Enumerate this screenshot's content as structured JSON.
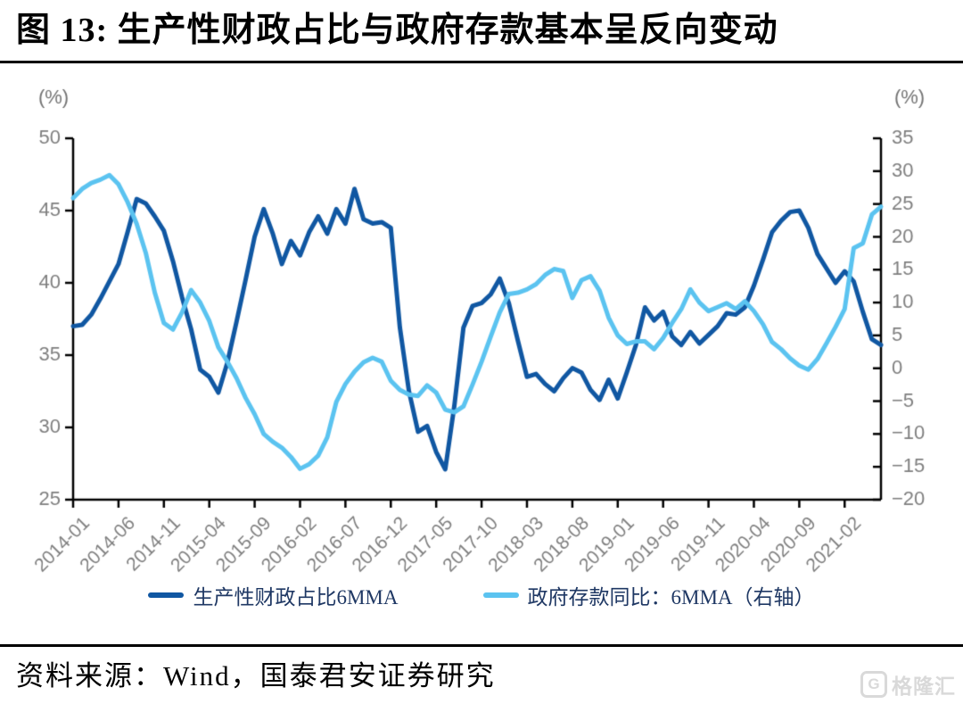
{
  "header": {
    "title": "图 13:  生产性财政占比与政府存款基本呈反向变动"
  },
  "footer": {
    "source": "资料来源：Wind，国泰君安证券研究",
    "watermark_icon": "G",
    "watermark_text": "格隆汇"
  },
  "chart_data": {
    "type": "line",
    "title": "",
    "grid": false,
    "legend_position": "bottom",
    "left_axis": {
      "label": "(%)",
      "min": 25,
      "max": 50,
      "step": 5,
      "ticks": [
        "50",
        "45",
        "40",
        "35",
        "30",
        "25"
      ]
    },
    "right_axis": {
      "label": "(%)",
      "min": -20,
      "max": 35,
      "step": 5,
      "ticks": [
        "35",
        "30",
        "25",
        "20",
        "15",
        "10",
        "5",
        "0",
        "−5",
        "−10",
        "−15",
        "−20"
      ]
    },
    "x_axis": {
      "months_total": 90,
      "start_month": "2014-01",
      "end_month": "2021-06",
      "tick_labels": [
        "2014-01",
        "2014-06",
        "2014-11",
        "2015-04",
        "2015-09",
        "2016-02",
        "2016-07",
        "2016-12",
        "2017-05",
        "2017-10",
        "2018-03",
        "2018-08",
        "2019-01",
        "2019-06",
        "2019-11",
        "2020-04",
        "2020-09",
        "2021-02"
      ],
      "tick_month_index": [
        0,
        5,
        10,
        15,
        20,
        25,
        30,
        35,
        40,
        45,
        50,
        55,
        60,
        65,
        70,
        75,
        80,
        85
      ]
    },
    "series": [
      {
        "name": "生产性财政占比6MMA",
        "axis": "left",
        "color": "#1057A2",
        "values": [
          37.0,
          37.1,
          37.8,
          38.9,
          40.1,
          41.3,
          43.5,
          45.8,
          45.5,
          44.6,
          43.6,
          41.5,
          39.0,
          36.8,
          34.0,
          33.5,
          32.4,
          34.5,
          37.3,
          40.2,
          43.2,
          45.1,
          43.4,
          41.3,
          42.9,
          41.9,
          43.5,
          44.6,
          43.4,
          45.1,
          44.1,
          46.5,
          44.4,
          44.1,
          44.2,
          43.8,
          36.9,
          32.5,
          29.7,
          30.1,
          28.3,
          27.1,
          31.5,
          36.9,
          38.4,
          38.6,
          39.2,
          40.3,
          38.6,
          36.0,
          33.5,
          33.7,
          33.0,
          32.5,
          33.4,
          34.1,
          33.8,
          32.6,
          31.9,
          33.3,
          32.0,
          33.8,
          35.7,
          38.3,
          37.4,
          38.0,
          36.3,
          35.7,
          36.6,
          35.8,
          36.4,
          37.0,
          37.9,
          37.8,
          38.3,
          39.8,
          41.6,
          43.5,
          44.3,
          44.9,
          45.0,
          43.8,
          42.0,
          41.0,
          40.0,
          40.8,
          40.1,
          38.0,
          36.1,
          35.7
        ]
      },
      {
        "name": "政府存款同比：6MMA（右轴）",
        "axis": "right",
        "color": "#5BC3F0",
        "values": [
          25.9,
          27.3,
          28.2,
          28.7,
          29.4,
          28.0,
          25.3,
          22.0,
          17.6,
          11.5,
          6.9,
          5.9,
          8.5,
          11.9,
          10.0,
          7.2,
          3.2,
          1.0,
          -1.5,
          -4.5,
          -7.0,
          -10.0,
          -11.2,
          -12.1,
          -13.5,
          -15.3,
          -14.6,
          -13.3,
          -10.5,
          -5.1,
          -2.4,
          -0.5,
          0.9,
          1.6,
          1.0,
          -1.9,
          -3.3,
          -4.0,
          -4.2,
          -2.6,
          -3.7,
          -6.3,
          -6.7,
          -5.8,
          -2.5,
          1.0,
          4.8,
          8.5,
          11.3,
          11.5,
          12.0,
          12.8,
          14.2,
          15.1,
          14.8,
          10.7,
          13.4,
          14.0,
          11.8,
          7.7,
          5.0,
          3.7,
          4.1,
          4.1,
          2.9,
          4.6,
          6.9,
          9.0,
          12.0,
          10.0,
          8.7,
          9.3,
          9.9,
          9.0,
          10.2,
          8.7,
          6.7,
          4.0,
          2.9,
          1.5,
          0.4,
          -0.2,
          1.4,
          3.8,
          6.3,
          9.0,
          18.3,
          19.0,
          23.4,
          24.6
        ]
      }
    ],
    "colors": {
      "axis_line": "#000000",
      "tick_label": "#7F7F7F",
      "axis_unit_label": "#737373",
      "legend_text": "#1F3864"
    }
  }
}
